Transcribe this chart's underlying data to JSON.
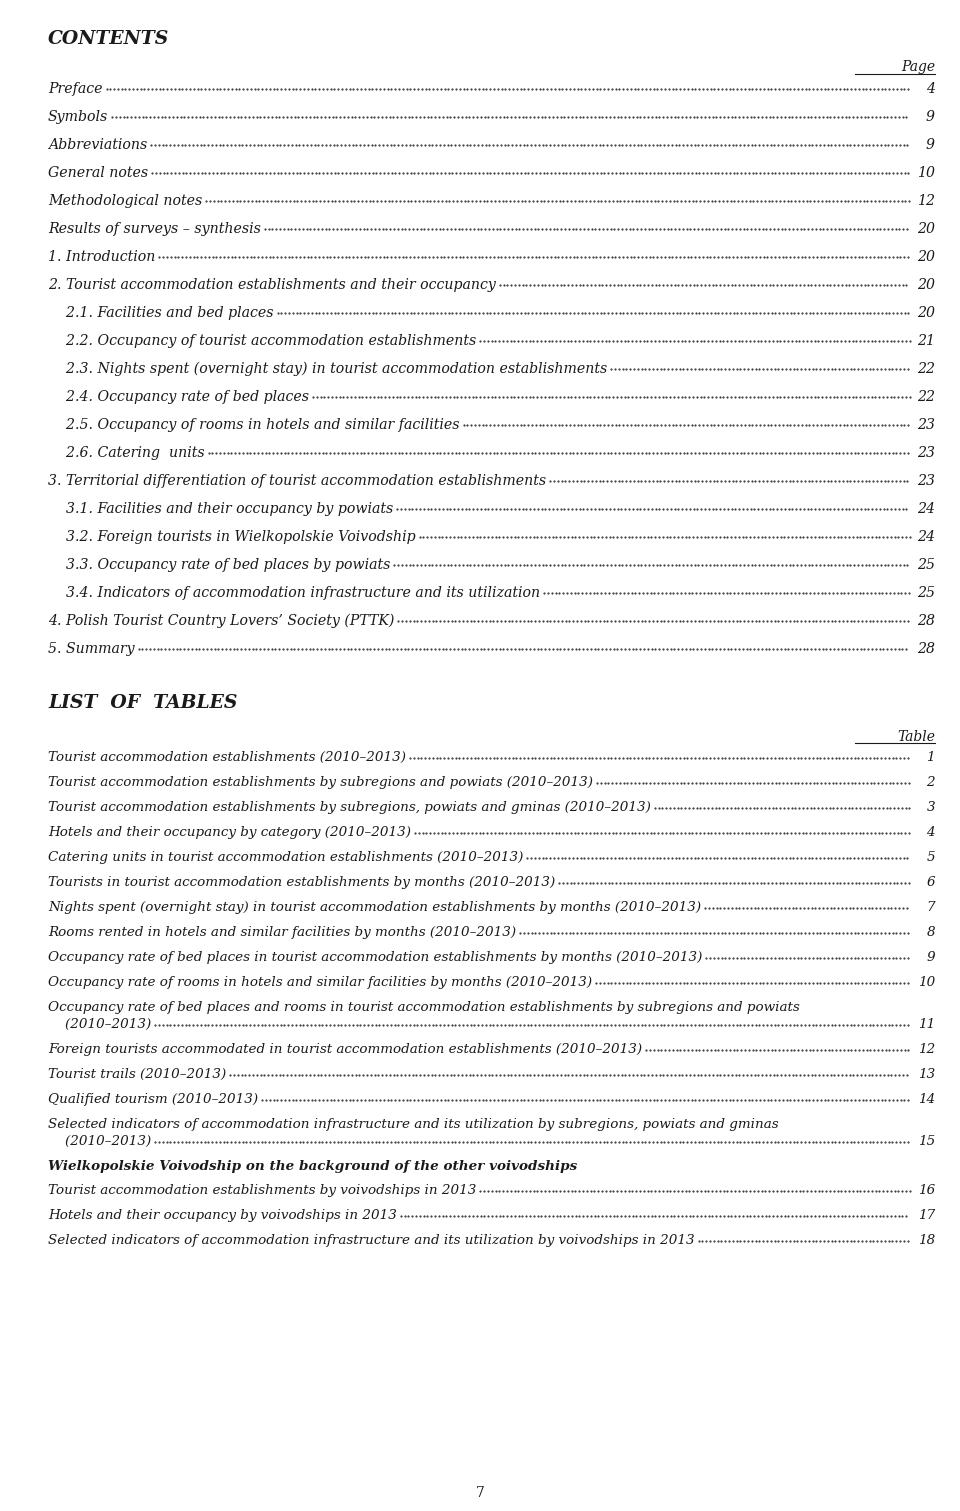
{
  "bg_color": "#ffffff",
  "text_color": "#1a1a1a",
  "contents_title": "CONTENTS",
  "page_label": "Page",
  "table_label": "Table",
  "list_of_tables_title": "LIST  OF  TABLES",
  "footer_number": "7",
  "contents_entries": [
    {
      "text": "Preface",
      "page": "4",
      "indent": 0
    },
    {
      "text": "Symbols",
      "page": "9",
      "indent": 0
    },
    {
      "text": "Abbreviations",
      "page": "9",
      "indent": 0
    },
    {
      "text": "General notes",
      "page": "10",
      "indent": 0
    },
    {
      "text": "Methodological notes",
      "page": "12",
      "indent": 0
    },
    {
      "text": "Results of surveys – synthesis",
      "page": "20",
      "indent": 0
    },
    {
      "text": "1. Introduction",
      "page": "20",
      "indent": 0
    },
    {
      "text": "2. Tourist accommodation establishments and their occupancy",
      "page": "20",
      "indent": 0
    },
    {
      "text": "    2.1. Facilities and bed places",
      "page": "20",
      "indent": 0
    },
    {
      "text": "    2.2. Occupancy of tourist accommodation establishments",
      "page": "21",
      "indent": 0
    },
    {
      "text": "    2.3. Nights spent (overnight stay) in tourist accommodation establishments",
      "page": "22",
      "indent": 0
    },
    {
      "text": "    2.4. Occupancy rate of bed places",
      "page": "22",
      "indent": 0
    },
    {
      "text": "    2.5. Occupancy of rooms in hotels and similar facilities",
      "page": "23",
      "indent": 0
    },
    {
      "text": "    2.6. Catering  units",
      "page": "23",
      "indent": 0
    },
    {
      "text": "3. Territorial differentiation of tourist accommodation establishments",
      "page": "23",
      "indent": 0
    },
    {
      "text": "    3.1. Facilities and their occupancy by powiats",
      "page": "24",
      "indent": 0
    },
    {
      "text": "    3.2. Foreign tourists in Wielkopolskie Voivodship",
      "page": "24",
      "indent": 0
    },
    {
      "text": "    3.3. Occupancy rate of bed places by powiats",
      "page": "25",
      "indent": 0
    },
    {
      "text": "    3.4. Indicators of accommodation infrastructure and its utilization",
      "page": "25",
      "indent": 0
    },
    {
      "text": "4. Polish Tourist Country Lovers’ Society (PTTK)",
      "page": "28",
      "indent": 0
    },
    {
      "text": "5. Summary",
      "page": "28",
      "indent": 0
    }
  ],
  "tables_entries": [
    {
      "text": "Tourist accommodation establishments (2010–2013)",
      "page": "1",
      "multiline": false,
      "bold": false
    },
    {
      "text": "Tourist accommodation establishments by subregions and powiats (2010–2013)",
      "page": "2",
      "multiline": false,
      "bold": false
    },
    {
      "text": "Tourist accommodation establishments by subregions, powiats and gminas (2010–2013)",
      "page": "3",
      "multiline": false,
      "bold": false
    },
    {
      "text": "Hotels and their occupancy by category (2010–2013)",
      "page": "4",
      "multiline": false,
      "bold": false
    },
    {
      "text": "Catering units in tourist accommodation establishments (2010–2013)",
      "page": "5",
      "multiline": false,
      "bold": false
    },
    {
      "text": "Tourists in tourist accommodation establishments by months (2010–2013)",
      "page": "6",
      "multiline": false,
      "bold": false
    },
    {
      "text": "Nights spent (overnight stay) in tourist accommodation establishments by months (2010–2013)",
      "page": "7",
      "multiline": false,
      "bold": false
    },
    {
      "text": "Rooms rented in hotels and similar facilities by months (2010–2013)",
      "page": "8",
      "multiline": false,
      "bold": false
    },
    {
      "text": "Occupancy rate of bed places in tourist accommodation establishments by months (2010–2013)",
      "page": "9",
      "multiline": false,
      "bold": false
    },
    {
      "text": "Occupancy rate of rooms in hotels and similar facilities by months (2010–2013)",
      "page": "10",
      "multiline": false,
      "bold": false
    },
    {
      "text": "Occupancy rate of bed places and rooms in tourist accommodation establishments by subregions and powiats",
      "page": "11",
      "multiline": true,
      "second_line": "    (2010–2013)",
      "bold": false
    },
    {
      "text": "Foreign tourists accommodated in tourist accommodation establishments (2010–2013)",
      "page": "12",
      "multiline": false,
      "bold": false
    },
    {
      "text": "Tourist trails (2010–2013)",
      "page": "13",
      "multiline": false,
      "bold": false
    },
    {
      "text": "Qualified tourism (2010–2013)",
      "page": "14",
      "multiline": false,
      "bold": false
    },
    {
      "text": "Selected indicators of accommodation infrastructure and its utilization by subregions, powiats and gminas",
      "page": "15",
      "multiline": true,
      "second_line": "    (2010–2013)",
      "bold": false
    },
    {
      "text": "Wielkopolskie Voivodship on the background of the other voivodships",
      "page": "",
      "multiline": false,
      "bold": true
    },
    {
      "text": "Tourist accommodation establishments by voivodships in 2013",
      "page": "16",
      "multiline": false,
      "bold": false
    },
    {
      "text": "Hotels and their occupancy by voivodships in 2013",
      "page": "17",
      "multiline": false,
      "bold": false
    },
    {
      "text": "Selected indicators of accommodation infrastructure and its utilization by voivodships in 2013",
      "page": "18",
      "multiline": false,
      "bold": false
    }
  ]
}
